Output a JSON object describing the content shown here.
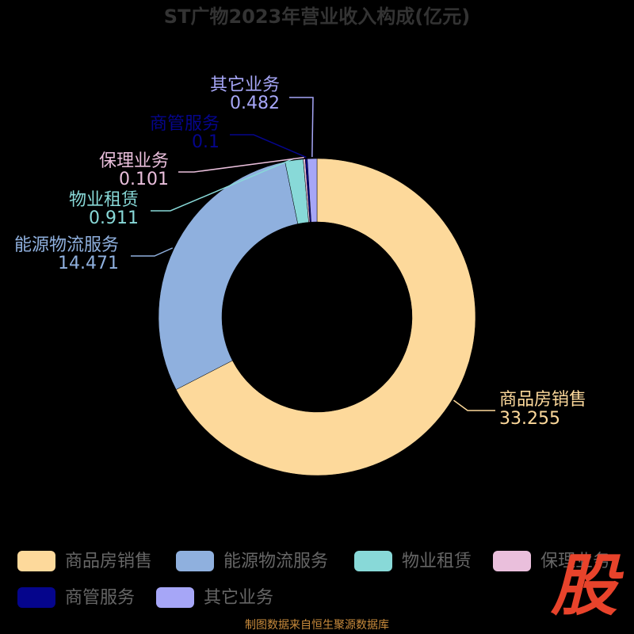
{
  "chart_data": {
    "type": "donut",
    "title": "ST广物2023年营业收入构成(亿元)",
    "categories": [
      "商品房销售",
      "能源物流服务",
      "物业租赁",
      "保理业务",
      "商管服务",
      "其它业务"
    ],
    "values": [
      33.255,
      14.471,
      0.911,
      0.101,
      0.1,
      0.482
    ],
    "colors": [
      "#fdd99b",
      "#8fb0de",
      "#88d9d8",
      "#eabfdc",
      "#05058c",
      "#a6a6f7"
    ],
    "legend": "bottom"
  },
  "footer": "制图数据来自恒生聚源数据库",
  "watermark": "股"
}
